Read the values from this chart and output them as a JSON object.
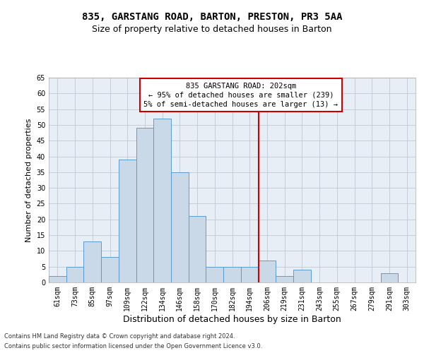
{
  "title1": "835, GARSTANG ROAD, BARTON, PRESTON, PR3 5AA",
  "title2": "Size of property relative to detached houses in Barton",
  "xlabel": "Distribution of detached houses by size in Barton",
  "ylabel": "Number of detached properties",
  "footer1": "Contains HM Land Registry data © Crown copyright and database right 2024.",
  "footer2": "Contains public sector information licensed under the Open Government Licence v3.0.",
  "bar_labels": [
    "61sqm",
    "73sqm",
    "85sqm",
    "97sqm",
    "109sqm",
    "122sqm",
    "134sqm",
    "146sqm",
    "158sqm",
    "170sqm",
    "182sqm",
    "194sqm",
    "206sqm",
    "219sqm",
    "231sqm",
    "243sqm",
    "255sqm",
    "267sqm",
    "279sqm",
    "291sqm",
    "303sqm"
  ],
  "bar_values": [
    2,
    5,
    13,
    8,
    39,
    49,
    52,
    35,
    21,
    5,
    5,
    5,
    7,
    2,
    4,
    0,
    0,
    0,
    0,
    3,
    0
  ],
  "bar_color": "#c9d9e8",
  "bar_edgecolor": "#5b9bd5",
  "grid_color": "#c0c8d8",
  "bg_color": "#e8eef5",
  "vline_color": "#cc0000",
  "annotation_line1": "835 GARSTANG ROAD: 202sqm",
  "annotation_line2": "← 95% of detached houses are smaller (239)",
  "annotation_line3": "5% of semi-detached houses are larger (13) →",
  "annotation_box_color": "#cc0000",
  "ylim": [
    0,
    65
  ],
  "yticks": [
    0,
    5,
    10,
    15,
    20,
    25,
    30,
    35,
    40,
    45,
    50,
    55,
    60,
    65
  ],
  "title1_fontsize": 10,
  "title2_fontsize": 9,
  "xlabel_fontsize": 9,
  "ylabel_fontsize": 8,
  "tick_fontsize": 7,
  "annotation_fontsize": 7.5,
  "footer_fontsize": 6
}
